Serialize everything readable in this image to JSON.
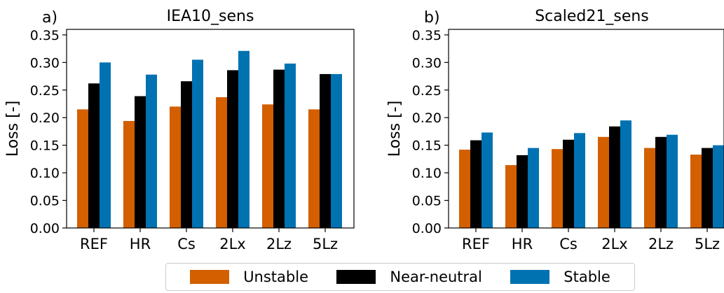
{
  "colors": {
    "Unstable": "#d35f00",
    "Near-neutral": "#000000",
    "Stable": "#0072b2"
  },
  "legend": {
    "placement": "bottom-center",
    "items": [
      {
        "label": "Unstable",
        "color": "#d35f00"
      },
      {
        "label": "Near-neutral",
        "color": "#000000"
      },
      {
        "label": "Stable",
        "color": "#0072b2"
      }
    ]
  },
  "chart_data": [
    {
      "type": "bar",
      "panel_label": "a)",
      "title": "IEA10_sens",
      "xlabel": "",
      "ylabel": "Loss [-]",
      "ylim": [
        0,
        0.36
      ],
      "yticks": [
        "0.00",
        "0.05",
        "0.10",
        "0.15",
        "0.20",
        "0.25",
        "0.30",
        "0.35"
      ],
      "grid": false,
      "categories": [
        "REF",
        "HR",
        "Cs",
        "2Lx",
        "2Lz",
        "5Lz"
      ],
      "series": [
        {
          "name": "Unstable",
          "values": [
            0.215,
            0.194,
            0.22,
            0.237,
            0.224,
            0.215
          ]
        },
        {
          "name": "Near-neutral",
          "values": [
            0.262,
            0.239,
            0.266,
            0.286,
            0.287,
            0.279
          ]
        },
        {
          "name": "Stable",
          "values": [
            0.3,
            0.278,
            0.305,
            0.321,
            0.298,
            0.279
          ]
        }
      ]
    },
    {
      "type": "bar",
      "panel_label": "b)",
      "title": "Scaled21_sens",
      "xlabel": "",
      "ylabel": "Loss [-]",
      "ylim": [
        0,
        0.36
      ],
      "yticks": [
        "0.00",
        "0.05",
        "0.10",
        "0.15",
        "0.20",
        "0.25",
        "0.30",
        "0.35"
      ],
      "grid": false,
      "categories": [
        "REF",
        "HR",
        "Cs",
        "2Lx",
        "2Lz",
        "5Lz"
      ],
      "series": [
        {
          "name": "Unstable",
          "values": [
            0.142,
            0.114,
            0.143,
            0.165,
            0.145,
            0.133
          ]
        },
        {
          "name": "Near-neutral",
          "values": [
            0.159,
            0.132,
            0.16,
            0.184,
            0.165,
            0.145
          ]
        },
        {
          "name": "Stable",
          "values": [
            0.173,
            0.145,
            0.172,
            0.195,
            0.169,
            0.15
          ]
        }
      ]
    }
  ]
}
